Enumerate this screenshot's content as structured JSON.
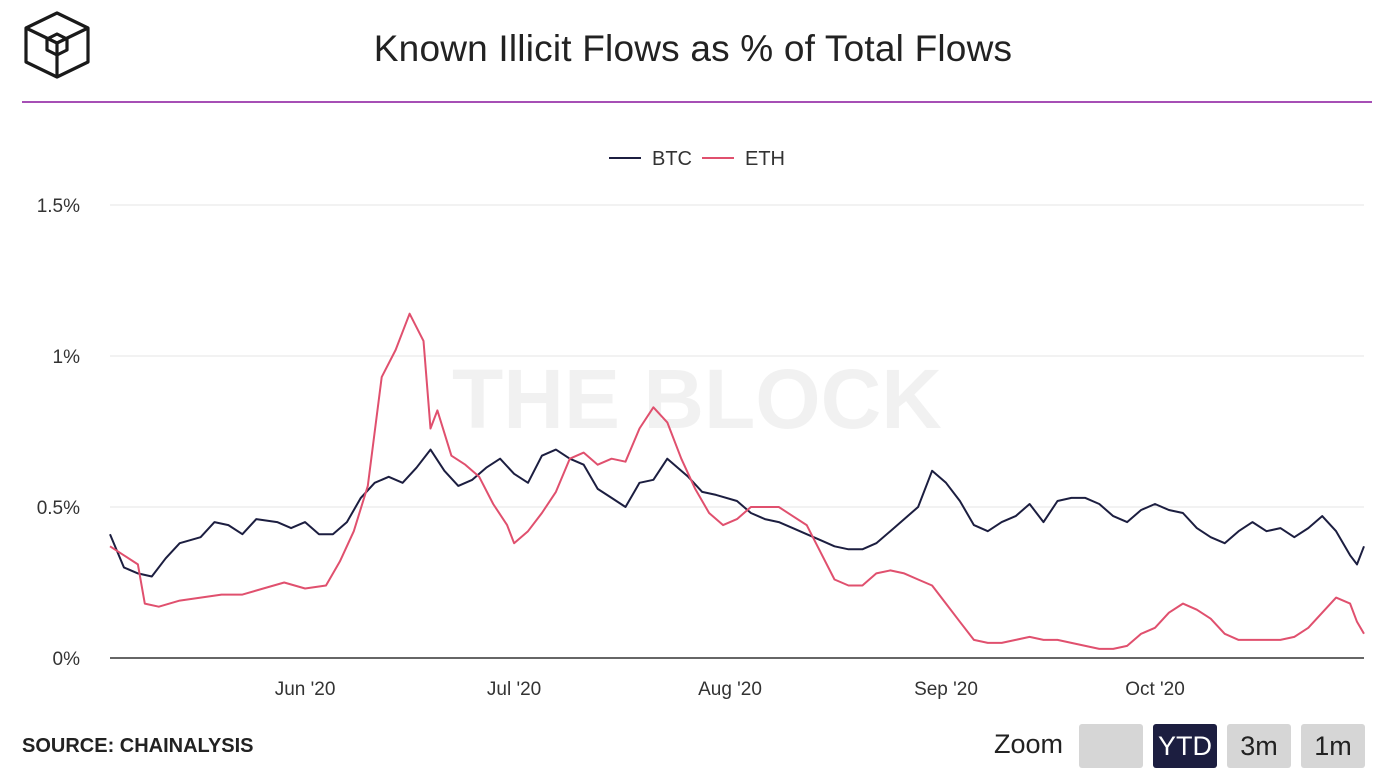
{
  "header": {
    "title": "Known Illicit Flows as % of Total Flows"
  },
  "footer": {
    "source": "SOURCE: CHAINALYSIS"
  },
  "zoom": {
    "label": "Zoom",
    "buttons": [
      {
        "label": "",
        "active": false
      },
      {
        "label": "YTD",
        "active": true
      },
      {
        "label": "3m",
        "active": false
      },
      {
        "label": "1m",
        "active": false
      }
    ]
  },
  "watermark": "THE BLOCK",
  "colors": {
    "btc": "#1c1e40",
    "eth": "#e0506e",
    "accent": "#a64fb5",
    "grid": "#e6e6e6"
  },
  "chart_data": {
    "type": "line",
    "title": "Known Illicit Flows as % of Total Flows",
    "xlabel": "",
    "ylabel": "",
    "x_start": "2020-05-04",
    "x_end": "2020-10-31",
    "ylim": [
      0,
      1.5
    ],
    "yticks": [
      0,
      0.5,
      1,
      1.5
    ],
    "ytick_labels": [
      "0%",
      "0.5%",
      "1%",
      "1.5%"
    ],
    "xticks": [
      {
        "date": "2020-06-01",
        "label": "Jun '20"
      },
      {
        "date": "2020-07-01",
        "label": "Jul '20"
      },
      {
        "date": "2020-08-01",
        "label": "Aug '20"
      },
      {
        "date": "2020-09-01",
        "label": "Sep '20"
      },
      {
        "date": "2020-10-01",
        "label": "Oct '20"
      }
    ],
    "grid": true,
    "legend": "top-center",
    "series": [
      {
        "name": "BTC",
        "points": [
          [
            "2020-05-04",
            0.41
          ],
          [
            "2020-05-06",
            0.3
          ],
          [
            "2020-05-08",
            0.28
          ],
          [
            "2020-05-10",
            0.27
          ],
          [
            "2020-05-12",
            0.33
          ],
          [
            "2020-05-14",
            0.38
          ],
          [
            "2020-05-17",
            0.4
          ],
          [
            "2020-05-19",
            0.45
          ],
          [
            "2020-05-21",
            0.44
          ],
          [
            "2020-05-23",
            0.41
          ],
          [
            "2020-05-25",
            0.46
          ],
          [
            "2020-05-28",
            0.45
          ],
          [
            "2020-05-30",
            0.43
          ],
          [
            "2020-06-01",
            0.45
          ],
          [
            "2020-06-03",
            0.41
          ],
          [
            "2020-06-05",
            0.41
          ],
          [
            "2020-06-07",
            0.45
          ],
          [
            "2020-06-09",
            0.53
          ],
          [
            "2020-06-11",
            0.58
          ],
          [
            "2020-06-13",
            0.6
          ],
          [
            "2020-06-15",
            0.58
          ],
          [
            "2020-06-17",
            0.63
          ],
          [
            "2020-06-19",
            0.69
          ],
          [
            "2020-06-21",
            0.62
          ],
          [
            "2020-06-23",
            0.57
          ],
          [
            "2020-06-25",
            0.59
          ],
          [
            "2020-06-27",
            0.63
          ],
          [
            "2020-06-29",
            0.66
          ],
          [
            "2020-07-01",
            0.61
          ],
          [
            "2020-07-03",
            0.58
          ],
          [
            "2020-07-05",
            0.67
          ],
          [
            "2020-07-07",
            0.69
          ],
          [
            "2020-07-09",
            0.66
          ],
          [
            "2020-07-11",
            0.64
          ],
          [
            "2020-07-13",
            0.56
          ],
          [
            "2020-07-15",
            0.53
          ],
          [
            "2020-07-17",
            0.5
          ],
          [
            "2020-07-19",
            0.58
          ],
          [
            "2020-07-21",
            0.59
          ],
          [
            "2020-07-23",
            0.66
          ],
          [
            "2020-07-26",
            0.6
          ],
          [
            "2020-07-28",
            0.55
          ],
          [
            "2020-07-30",
            0.54
          ],
          [
            "2020-08-02",
            0.52
          ],
          [
            "2020-08-04",
            0.48
          ],
          [
            "2020-08-06",
            0.46
          ],
          [
            "2020-08-08",
            0.45
          ],
          [
            "2020-08-10",
            0.43
          ],
          [
            "2020-08-12",
            0.41
          ],
          [
            "2020-08-14",
            0.39
          ],
          [
            "2020-08-16",
            0.37
          ],
          [
            "2020-08-18",
            0.36
          ],
          [
            "2020-08-20",
            0.36
          ],
          [
            "2020-08-22",
            0.38
          ],
          [
            "2020-08-24",
            0.42
          ],
          [
            "2020-08-26",
            0.46
          ],
          [
            "2020-08-28",
            0.5
          ],
          [
            "2020-08-30",
            0.62
          ],
          [
            "2020-09-01",
            0.58
          ],
          [
            "2020-09-03",
            0.52
          ],
          [
            "2020-09-05",
            0.44
          ],
          [
            "2020-09-07",
            0.42
          ],
          [
            "2020-09-09",
            0.45
          ],
          [
            "2020-09-11",
            0.47
          ],
          [
            "2020-09-13",
            0.51
          ],
          [
            "2020-09-15",
            0.45
          ],
          [
            "2020-09-17",
            0.52
          ],
          [
            "2020-09-19",
            0.53
          ],
          [
            "2020-09-21",
            0.53
          ],
          [
            "2020-09-23",
            0.51
          ],
          [
            "2020-09-25",
            0.47
          ],
          [
            "2020-09-27",
            0.45
          ],
          [
            "2020-09-29",
            0.49
          ],
          [
            "2020-10-01",
            0.51
          ],
          [
            "2020-10-03",
            0.49
          ],
          [
            "2020-10-05",
            0.48
          ],
          [
            "2020-10-07",
            0.43
          ],
          [
            "2020-10-09",
            0.4
          ],
          [
            "2020-10-11",
            0.38
          ],
          [
            "2020-10-13",
            0.42
          ],
          [
            "2020-10-15",
            0.45
          ],
          [
            "2020-10-17",
            0.42
          ],
          [
            "2020-10-19",
            0.43
          ],
          [
            "2020-10-21",
            0.4
          ],
          [
            "2020-10-23",
            0.43
          ],
          [
            "2020-10-25",
            0.47
          ],
          [
            "2020-10-27",
            0.42
          ],
          [
            "2020-10-29",
            0.34
          ],
          [
            "2020-10-30",
            0.31
          ],
          [
            "2020-10-31",
            0.37
          ]
        ]
      },
      {
        "name": "ETH",
        "points": [
          [
            "2020-05-04",
            0.37
          ],
          [
            "2020-05-06",
            0.34
          ],
          [
            "2020-05-08",
            0.31
          ],
          [
            "2020-05-09",
            0.18
          ],
          [
            "2020-05-11",
            0.17
          ],
          [
            "2020-05-14",
            0.19
          ],
          [
            "2020-05-17",
            0.2
          ],
          [
            "2020-05-20",
            0.21
          ],
          [
            "2020-05-23",
            0.21
          ],
          [
            "2020-05-26",
            0.23
          ],
          [
            "2020-05-29",
            0.25
          ],
          [
            "2020-06-01",
            0.23
          ],
          [
            "2020-06-04",
            0.24
          ],
          [
            "2020-06-06",
            0.32
          ],
          [
            "2020-06-08",
            0.42
          ],
          [
            "2020-06-10",
            0.57
          ],
          [
            "2020-06-12",
            0.93
          ],
          [
            "2020-06-14",
            1.02
          ],
          [
            "2020-06-16",
            1.14
          ],
          [
            "2020-06-18",
            1.05
          ],
          [
            "2020-06-19",
            0.76
          ],
          [
            "2020-06-20",
            0.82
          ],
          [
            "2020-06-22",
            0.67
          ],
          [
            "2020-06-24",
            0.64
          ],
          [
            "2020-06-26",
            0.6
          ],
          [
            "2020-06-28",
            0.51
          ],
          [
            "2020-06-30",
            0.44
          ],
          [
            "2020-07-01",
            0.38
          ],
          [
            "2020-07-03",
            0.42
          ],
          [
            "2020-07-05",
            0.48
          ],
          [
            "2020-07-07",
            0.55
          ],
          [
            "2020-07-09",
            0.66
          ],
          [
            "2020-07-11",
            0.68
          ],
          [
            "2020-07-13",
            0.64
          ],
          [
            "2020-07-15",
            0.66
          ],
          [
            "2020-07-17",
            0.65
          ],
          [
            "2020-07-19",
            0.76
          ],
          [
            "2020-07-21",
            0.83
          ],
          [
            "2020-07-23",
            0.78
          ],
          [
            "2020-07-25",
            0.66
          ],
          [
            "2020-07-27",
            0.56
          ],
          [
            "2020-07-29",
            0.48
          ],
          [
            "2020-07-31",
            0.44
          ],
          [
            "2020-08-02",
            0.46
          ],
          [
            "2020-08-04",
            0.5
          ],
          [
            "2020-08-06",
            0.5
          ],
          [
            "2020-08-08",
            0.5
          ],
          [
            "2020-08-10",
            0.47
          ],
          [
            "2020-08-12",
            0.44
          ],
          [
            "2020-08-14",
            0.35
          ],
          [
            "2020-08-16",
            0.26
          ],
          [
            "2020-08-18",
            0.24
          ],
          [
            "2020-08-20",
            0.24
          ],
          [
            "2020-08-22",
            0.28
          ],
          [
            "2020-08-24",
            0.29
          ],
          [
            "2020-08-26",
            0.28
          ],
          [
            "2020-08-28",
            0.26
          ],
          [
            "2020-08-30",
            0.24
          ],
          [
            "2020-09-01",
            0.18
          ],
          [
            "2020-09-03",
            0.12
          ],
          [
            "2020-09-05",
            0.06
          ],
          [
            "2020-09-07",
            0.05
          ],
          [
            "2020-09-09",
            0.05
          ],
          [
            "2020-09-11",
            0.06
          ],
          [
            "2020-09-13",
            0.07
          ],
          [
            "2020-09-15",
            0.06
          ],
          [
            "2020-09-17",
            0.06
          ],
          [
            "2020-09-19",
            0.05
          ],
          [
            "2020-09-21",
            0.04
          ],
          [
            "2020-09-23",
            0.03
          ],
          [
            "2020-09-25",
            0.03
          ],
          [
            "2020-09-27",
            0.04
          ],
          [
            "2020-09-29",
            0.08
          ],
          [
            "2020-10-01",
            0.1
          ],
          [
            "2020-10-03",
            0.15
          ],
          [
            "2020-10-05",
            0.18
          ],
          [
            "2020-10-07",
            0.16
          ],
          [
            "2020-10-09",
            0.13
          ],
          [
            "2020-10-11",
            0.08
          ],
          [
            "2020-10-13",
            0.06
          ],
          [
            "2020-10-15",
            0.06
          ],
          [
            "2020-10-17",
            0.06
          ],
          [
            "2020-10-19",
            0.06
          ],
          [
            "2020-10-21",
            0.07
          ],
          [
            "2020-10-23",
            0.1
          ],
          [
            "2020-10-25",
            0.15
          ],
          [
            "2020-10-27",
            0.2
          ],
          [
            "2020-10-29",
            0.18
          ],
          [
            "2020-10-30",
            0.12
          ],
          [
            "2020-10-31",
            0.08
          ]
        ]
      }
    ]
  }
}
